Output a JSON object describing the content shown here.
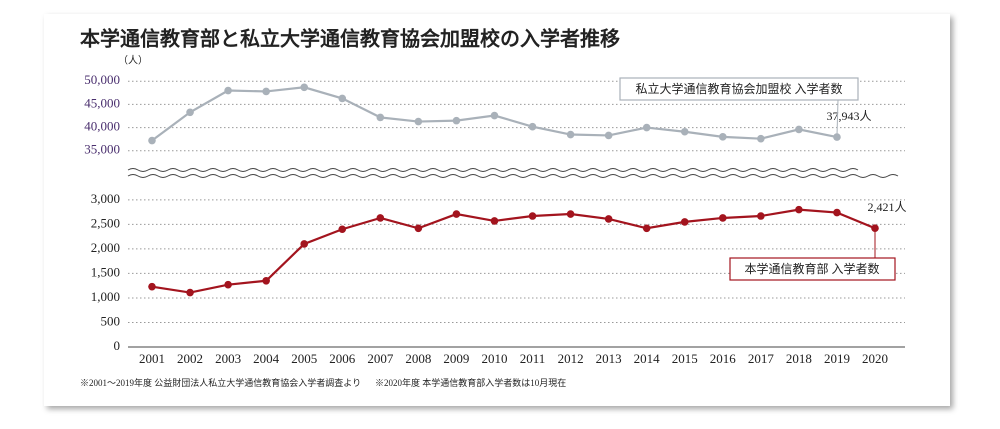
{
  "title": "本学通信教育部と私立大学通信教育協会加盟校の入学者推移",
  "unit_label": "（人）",
  "notes": [
    "※2001～2019年度 公益財団法人私立大学通信教育協会入学者調査より",
    "※2020年度 本学通信教育部入学者数は10月現在"
  ],
  "chart_data": {
    "type": "line",
    "categories": [
      "2001",
      "2002",
      "2003",
      "2004",
      "2005",
      "2006",
      "2007",
      "2008",
      "2009",
      "2010",
      "2011",
      "2012",
      "2013",
      "2014",
      "2015",
      "2016",
      "2017",
      "2018",
      "2019",
      "2020"
    ],
    "series": [
      {
        "name": "私立大学通信教育協会加盟校 入学者数",
        "color": "#a9b1b9",
        "axis": "y2",
        "values": [
          37200,
          43300,
          48000,
          47800,
          48700,
          46300,
          42200,
          41300,
          41500,
          42600,
          40200,
          38500,
          38300,
          40000,
          39100,
          38000,
          37600,
          39600,
          37943,
          null
        ],
        "value_labels": [
          null,
          null,
          null,
          null,
          null,
          null,
          null,
          null,
          null,
          null,
          null,
          null,
          null,
          null,
          null,
          null,
          null,
          null,
          "37,943人",
          null
        ]
      },
      {
        "name": "本学通信教育部 入学者数",
        "color": "#a3141e",
        "axis": "y",
        "values": [
          1230,
          1110,
          1270,
          1350,
          2100,
          2400,
          2630,
          2420,
          2710,
          2570,
          2670,
          2710,
          2610,
          2420,
          2550,
          2630,
          2670,
          2800,
          2740,
          2421
        ],
        "value_labels": [
          null,
          null,
          null,
          null,
          null,
          null,
          null,
          null,
          null,
          null,
          null,
          null,
          null,
          null,
          null,
          null,
          null,
          null,
          null,
          "2,421人"
        ]
      }
    ],
    "ylim": [
      0,
      3200
    ],
    "yticks": [
      0,
      500,
      {
        "value": 1000,
        "label": "1,000"
      },
      {
        "value": 1500,
        "label": "1,500"
      },
      {
        "value": 2000,
        "label": "2,000"
      },
      {
        "value": 2500,
        "label": "2,500"
      },
      {
        "value": 3000,
        "label": "3,000"
      }
    ],
    "y2lim": [
      33000,
      52000
    ],
    "y2ticks": [
      {
        "value": 35000,
        "label": "35,000"
      },
      {
        "value": 40000,
        "label": "40,000"
      },
      {
        "value": 45000,
        "label": "45,000"
      },
      {
        "value": 50000,
        "label": "50,000"
      }
    ],
    "grid": true
  }
}
